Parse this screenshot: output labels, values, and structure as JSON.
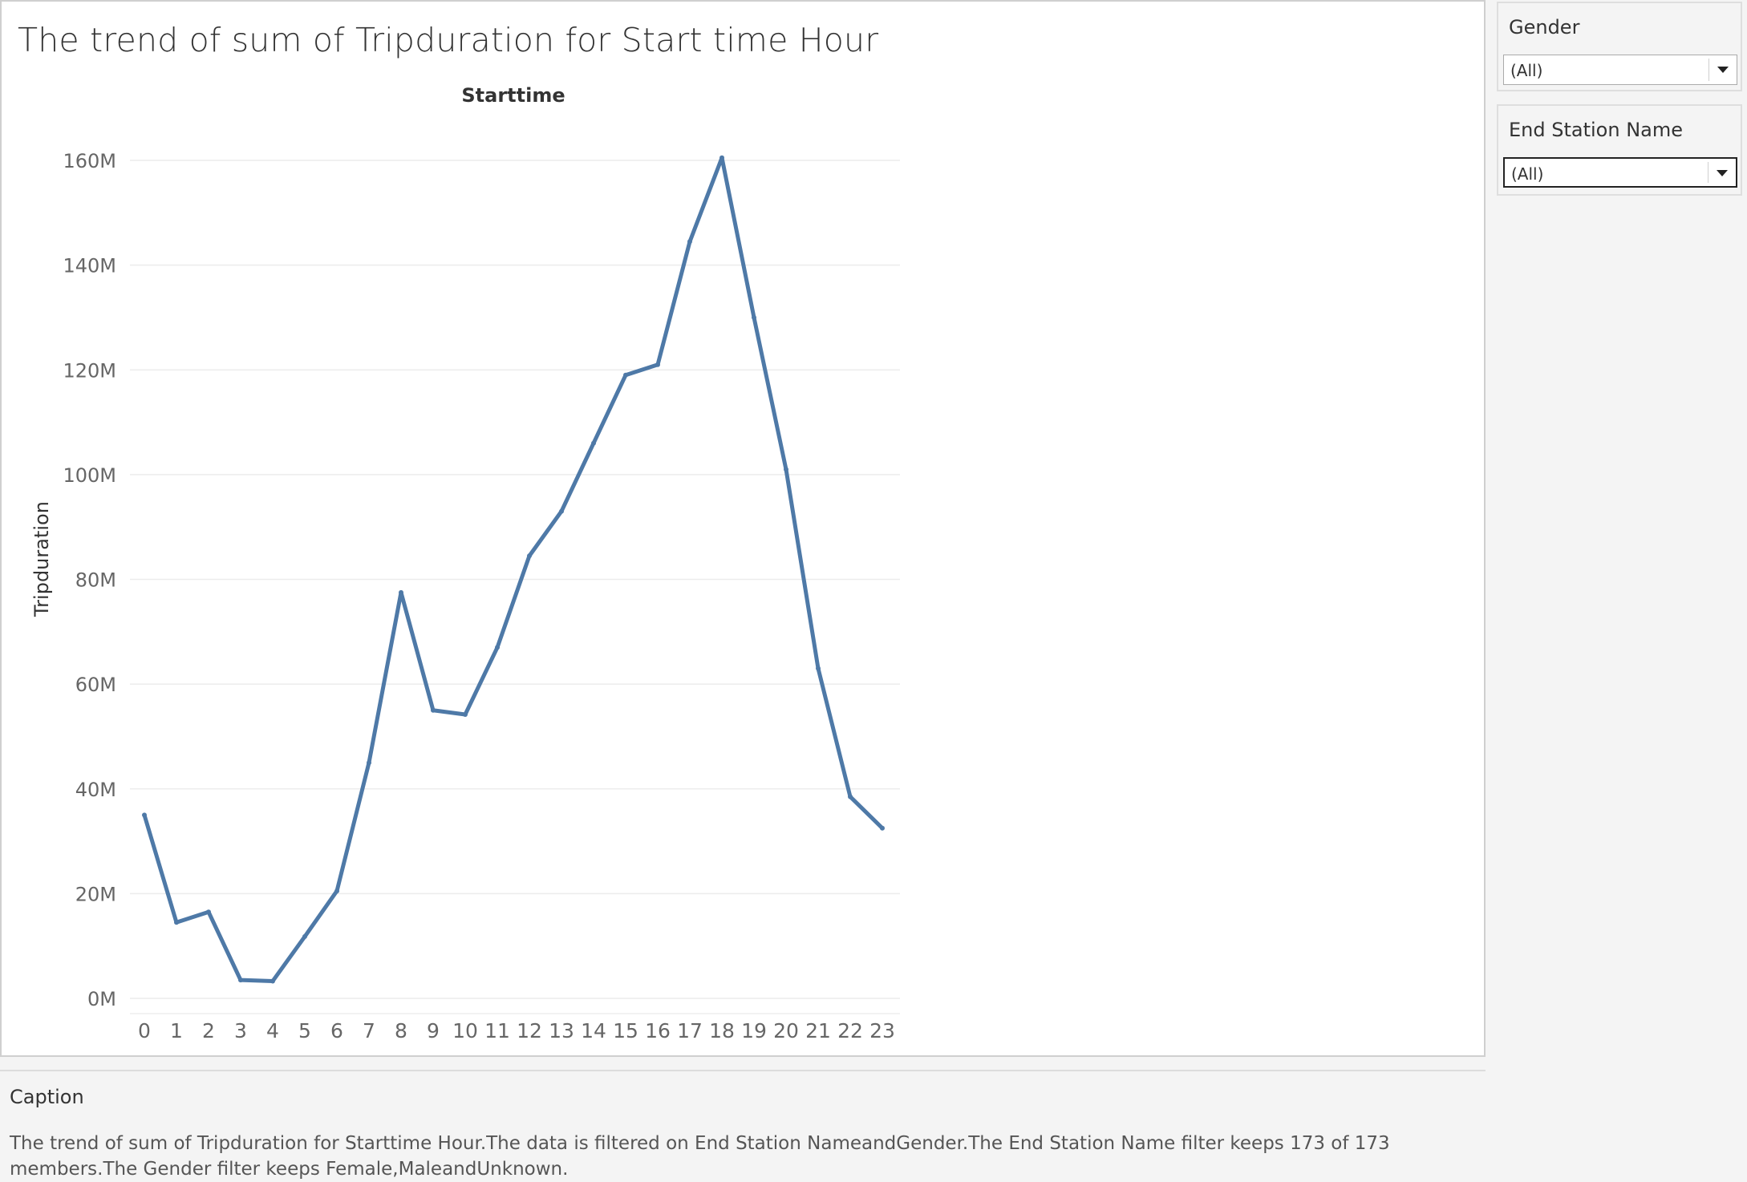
{
  "chart_title": "The trend of sum of Tripduration for Start time Hour",
  "filters": {
    "gender": {
      "title": "Gender",
      "value": "(All)"
    },
    "end_station": {
      "title": "End Station Name",
      "value": "(All)"
    }
  },
  "caption": {
    "title": "Caption",
    "text": "The trend of sum of Tripduration for Starttime Hour.The data is filtered on End Station NameandGender.The End Station Name filter keeps 173 of 173 members.The Gender filter keeps Female,MaleandUnknown."
  },
  "colors": {
    "line": "#4e79a7",
    "grid": "#ececec",
    "tick": "#666666"
  },
  "chart_data": {
    "type": "line",
    "title": "The trend of sum of Tripduration for Start time Hour",
    "xlabel": "Starttime",
    "ylabel": "Tripduration",
    "x": [
      0,
      1,
      2,
      3,
      4,
      5,
      6,
      7,
      8,
      9,
      10,
      11,
      12,
      13,
      14,
      15,
      16,
      17,
      18,
      19,
      20,
      21,
      22,
      23
    ],
    "series": [
      {
        "values": [
          35.0,
          14.5,
          16.5,
          3.5,
          3.3,
          11.8,
          20.5,
          45.0,
          77.5,
          55.0,
          54.2,
          67.0,
          84.5,
          93.0,
          106.0,
          119.0,
          121.0,
          144.5,
          160.5,
          130.0,
          101.0,
          63.0,
          38.5,
          32.5
        ]
      }
    ],
    "y_unit": "M",
    "ylim": [
      0,
      170
    ],
    "yticks": [
      0,
      20,
      40,
      60,
      80,
      100,
      120,
      140,
      160
    ],
    "ytick_labels": [
      "0M",
      "20M",
      "40M",
      "60M",
      "80M",
      "100M",
      "120M",
      "140M",
      "160M"
    ],
    "grid": true,
    "legend": "none"
  }
}
